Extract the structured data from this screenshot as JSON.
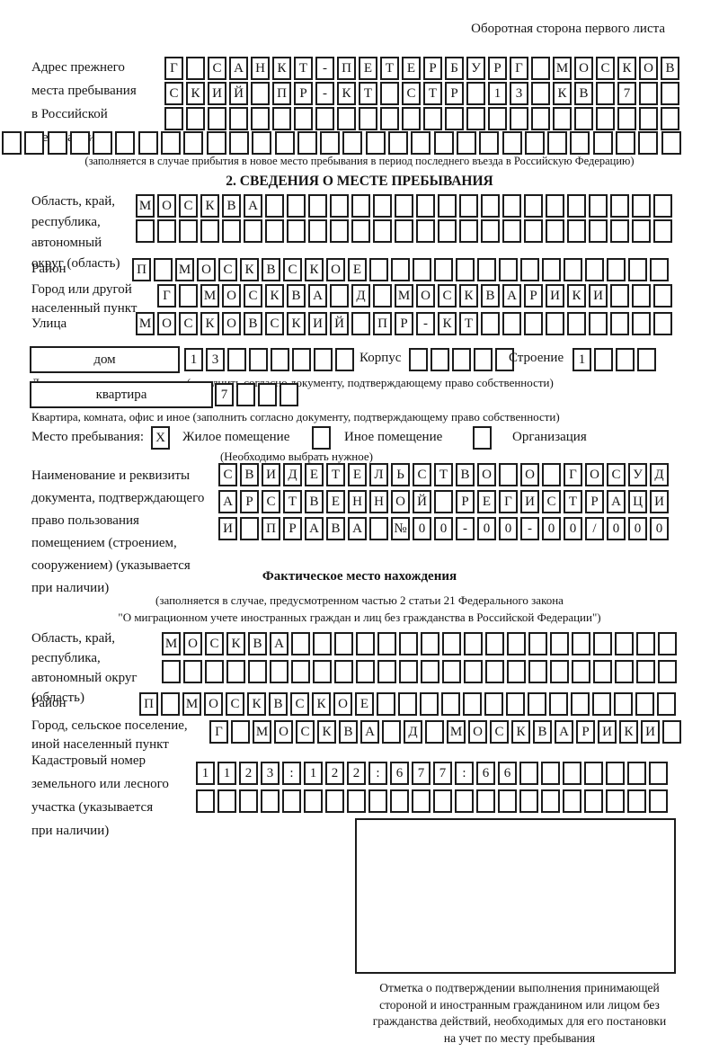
{
  "page": {
    "header_note": "Оборотная сторона первого листа"
  },
  "prev_address": {
    "label": "Адрес прежнего\nместа пребывания\nв Российской\nФедерации",
    "row1": {
      "text": "Г САНКТ-ПЕТЕРБУРГ МОСКОВ",
      "len": 24
    },
    "row2": {
      "text": "СКИЙ ПР-КТ СТР 13 КВ 7",
      "len": 24
    },
    "row3": {
      "text": "",
      "len": 24
    },
    "row4": {
      "text": "",
      "len": 30
    },
    "caption": "(заполняется в случае прибытия в новое место пребывания в период последнего въезда в Российскую Федерацию)"
  },
  "stay_info": {
    "title": "2. СВЕДЕНИЯ О МЕСТЕ ПРЕБЫВАНИЯ",
    "region_label": "Область, край,\nреспублика,\nавтономный\nокруг (область)",
    "region_row1": {
      "text": "МОСКВА",
      "len": 25
    },
    "region_row2": {
      "text": "",
      "len": 25
    },
    "district_label": "Район",
    "district_row": {
      "text": "П МОСКВСКОЕ",
      "len": 25
    },
    "city_label": "Город или другой\nнаселенный пункт",
    "city_row": {
      "text": "Г МОСКВА Д МОСКВАРИКИ",
      "len": 24
    },
    "street_label": "Улица",
    "street_row": {
      "text": "МОСКОВСКИЙ ПР-КТ",
      "len": 25
    },
    "house_box_label": "дом",
    "house_row": {
      "text": "13",
      "len": 8
    },
    "korpus_label": "Корпус",
    "korpus_row": {
      "text": "",
      "len": 5
    },
    "stroenie_label": "Строение",
    "stroenie_row": {
      "text": "1",
      "len": 4
    },
    "house_caption": "Дом, участок, владение и иное (заполнить согласно документу, подтверждающему право собственности)",
    "apt_box_label": "квартира",
    "apt_row": {
      "text": "7",
      "len": 4
    },
    "apt_caption": "Квартира, комната, офис и иное (заполнить согласно документу, подтверждающему право собственности)",
    "stay_type_label": "Место пребывания:",
    "stay_type_options": [
      {
        "label": "Жилое помещение",
        "checked": "X"
      },
      {
        "label": "Иное помещение",
        "checked": ""
      },
      {
        "label": "Организация",
        "checked": ""
      }
    ],
    "choose_caption": "(Необходимо выбрать нужное)",
    "doc_label": "Наименование и реквизиты\nдокумента, подтверждающего\nправо пользования\nпомещением (строением,\nсооружением) (указывается\nпри наличии)",
    "doc_row1": {
      "text": "СВИДЕТЕЛЬСТВО О ГОСУД",
      "len": 21
    },
    "doc_row2": {
      "text": "АРСТВЕННОЙ РЕГИСТРАЦИ",
      "len": 21
    },
    "doc_row3": {
      "text": "И ПРАВА №00-00-00/000",
      "len": 21
    }
  },
  "actual_location": {
    "title": "Фактическое место нахождения",
    "caption_line1": "(заполняется в случае, предусмотренном частью 2 статьи 21 Федерального закона",
    "caption_line2": "\"О миграционном учете иностранных граждан и лиц без гражданства в Российской Федерации\")",
    "region_label": "Область, край,\nреспублика,\nавтономный округ\n(область)",
    "region_row1": {
      "text": "МОСКВА",
      "len": 24
    },
    "region_row2": {
      "text": "",
      "len": 24
    },
    "district_label": "Район",
    "district_row": {
      "text": "П МОСКВСКОЕ",
      "len": 25
    },
    "city_label": "Город, сельское поселение,\nиной населенный пункт",
    "city_row": {
      "text": "Г МОСКВА Д МОСКВАРИКИ",
      "len": 22
    },
    "cadastral_label": "Кадастровый номер\nземельного или лесного\nучастка (указывается\nпри наличии)",
    "cadastral_row1": {
      "text": "1123:122:677:66",
      "len": 22
    },
    "cadastral_row2": {
      "text": "",
      "len": 22
    }
  },
  "stamp": {
    "caption": "Отметка о подтверждении выполнения принимающей\nстороной и иностранным гражданином или лицом без\nгражданства действий, необходимых для его постановки\nна учет по месту пребывания"
  }
}
